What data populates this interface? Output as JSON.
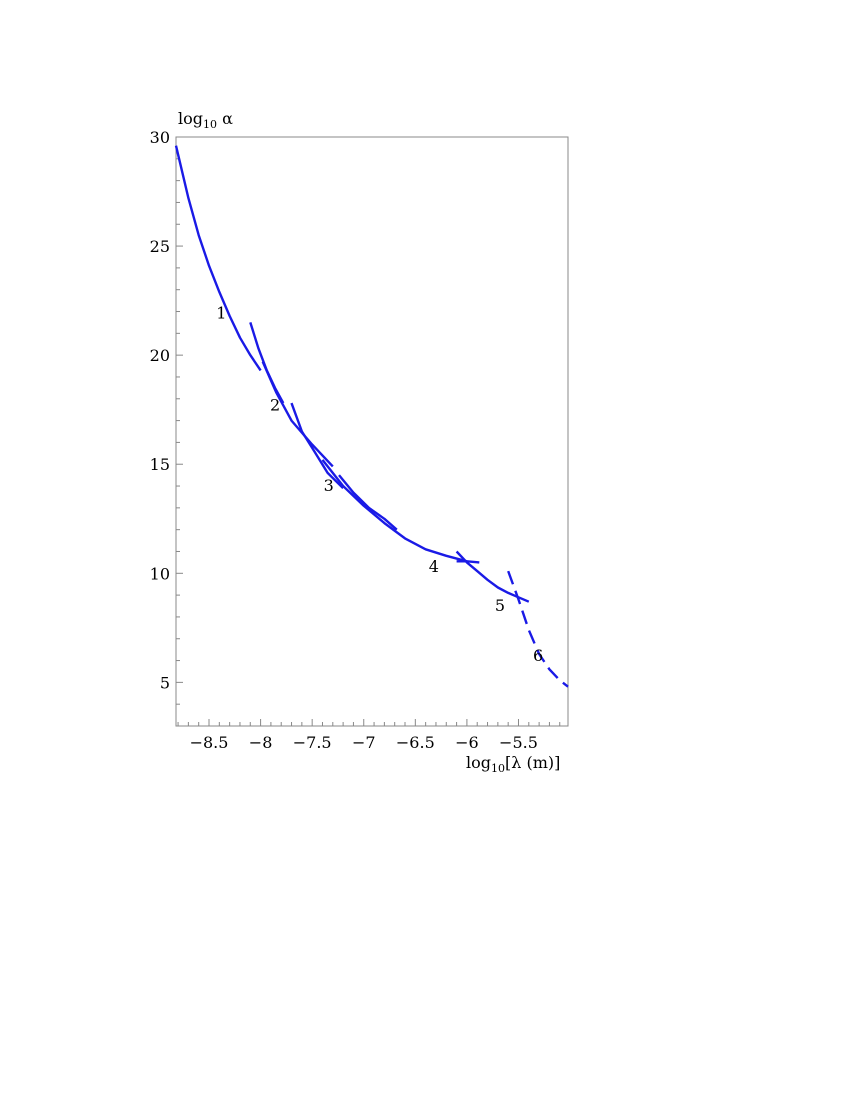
{
  "chart_data": {
    "type": "line",
    "title": "",
    "ylabel": {
      "base": "log",
      "sub": "10",
      "rest": " α"
    },
    "xlabel": {
      "base": "log",
      "sub": "10",
      "rest": "[λ (m)]"
    },
    "xlim": [
      -8.82,
      -5.02
    ],
    "ylim": [
      3,
      30
    ],
    "x_ticks": [
      -8.5,
      -8,
      -7.5,
      -7,
      -6.5,
      -6,
      -5.5
    ],
    "x_tick_labels": [
      "−8.5",
      "−8",
      "−7.5",
      "−7",
      "−6.5",
      "−6",
      "−5.5"
    ],
    "y_ticks": [
      5,
      10,
      15,
      20,
      25,
      30
    ],
    "y_tick_labels": [
      "5",
      "10",
      "15",
      "20",
      "25",
      "30"
    ],
    "series_color": "#1a1ae6",
    "series": [
      {
        "style": "solid",
        "points": [
          [
            -8.82,
            29.6
          ],
          [
            -8.7,
            27.2
          ],
          [
            -8.6,
            25.5
          ],
          [
            -8.5,
            24.1
          ],
          [
            -8.4,
            22.9
          ],
          [
            -8.3,
            21.8
          ],
          [
            -8.2,
            20.8
          ],
          [
            -8.1,
            20.0
          ],
          [
            -8.0,
            19.3
          ]
        ]
      },
      {
        "style": "solid",
        "points": [
          [
            -8.1,
            21.5
          ],
          [
            -8.02,
            20.3
          ],
          [
            -7.94,
            19.3
          ],
          [
            -7.86,
            18.5
          ],
          [
            -7.78,
            17.8
          ]
        ]
      },
      {
        "style": "solid",
        "points": [
          [
            -7.98,
            19.7
          ],
          [
            -7.85,
            18.3
          ],
          [
            -7.7,
            17.0
          ],
          [
            -7.5,
            15.9
          ],
          [
            -7.3,
            14.9
          ]
        ]
      },
      {
        "style": "solid",
        "points": [
          [
            -7.7,
            17.8
          ],
          [
            -7.6,
            16.5
          ],
          [
            -7.48,
            15.6
          ],
          [
            -7.35,
            14.6
          ],
          [
            -7.2,
            13.9
          ]
        ]
      },
      {
        "style": "solid",
        "points": [
          [
            -7.4,
            15.2
          ],
          [
            -7.2,
            14.0
          ],
          [
            -7.0,
            13.1
          ],
          [
            -6.8,
            12.3
          ],
          [
            -6.6,
            11.6
          ],
          [
            -6.4,
            11.1
          ],
          [
            -6.2,
            10.8
          ],
          [
            -6.0,
            10.55
          ]
        ]
      },
      {
        "style": "solid",
        "points": [
          [
            -7.24,
            14.5
          ],
          [
            -7.1,
            13.7
          ],
          [
            -6.95,
            13.0
          ],
          [
            -6.8,
            12.5
          ],
          [
            -6.68,
            12.0
          ]
        ]
      },
      {
        "style": "solid",
        "points": [
          [
            -6.1,
            11.0
          ],
          [
            -6.0,
            10.5
          ],
          [
            -5.9,
            10.1
          ],
          [
            -5.8,
            9.7
          ],
          [
            -5.7,
            9.35
          ],
          [
            -5.6,
            9.1
          ],
          [
            -5.5,
            8.9
          ],
          [
            -5.4,
            8.7
          ]
        ]
      },
      {
        "style": "solid",
        "points": [
          [
            -6.1,
            10.55
          ],
          [
            -6.0,
            10.55
          ],
          [
            -5.88,
            10.5
          ]
        ]
      },
      {
        "style": "dashed",
        "points": [
          [
            -5.6,
            10.1
          ],
          [
            -5.5,
            8.8
          ],
          [
            -5.4,
            7.4
          ],
          [
            -5.3,
            6.3
          ],
          [
            -5.2,
            5.6
          ],
          [
            -5.1,
            5.1
          ],
          [
            -5.02,
            4.8
          ]
        ]
      }
    ],
    "annotations": [
      {
        "text": "1",
        "x": -8.38,
        "y": 21.9
      },
      {
        "text": "2",
        "x": -7.86,
        "y": 17.7
      },
      {
        "text": "3",
        "x": -7.34,
        "y": 14.0
      },
      {
        "text": "4",
        "x": -6.32,
        "y": 10.3
      },
      {
        "text": "5",
        "x": -5.68,
        "y": 8.5
      },
      {
        "text": "6",
        "x": -5.31,
        "y": 6.2
      }
    ]
  }
}
